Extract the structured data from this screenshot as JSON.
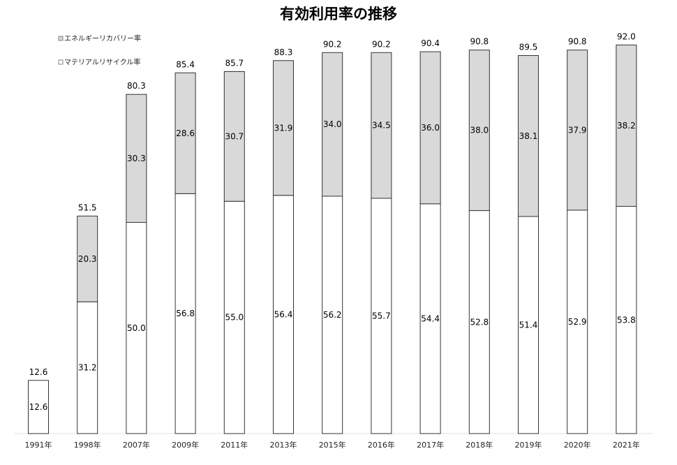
{
  "chart_data": {
    "type": "bar",
    "stacked": true,
    "title": "有効利用率の推移",
    "categories": [
      "1991年",
      "1998年",
      "2007年",
      "2009年",
      "2011年",
      "2013年",
      "2015年",
      "2016年",
      "2017年",
      "2018年",
      "2019年",
      "2020年",
      "2021年"
    ],
    "series": [
      {
        "name": "マテリアルリサイクル率",
        "color": "#ffffff",
        "values": [
          12.6,
          31.2,
          50.0,
          56.8,
          55.0,
          56.4,
          56.2,
          55.7,
          54.4,
          52.8,
          51.4,
          52.9,
          53.8
        ]
      },
      {
        "name": "エネルギーリカバリー率",
        "color": "#d9d9d9",
        "values": [
          null,
          20.3,
          30.3,
          28.6,
          30.7,
          31.9,
          34.0,
          34.5,
          36.0,
          38.0,
          38.1,
          37.9,
          38.2
        ]
      }
    ],
    "totals": [
      12.6,
      51.5,
      80.3,
      85.4,
      85.7,
      88.3,
      90.2,
      90.2,
      90.4,
      90.8,
      89.5,
      90.8,
      92.0
    ],
    "ylim": [
      0,
      100
    ],
    "legend_position": "top-left",
    "grid": false
  }
}
